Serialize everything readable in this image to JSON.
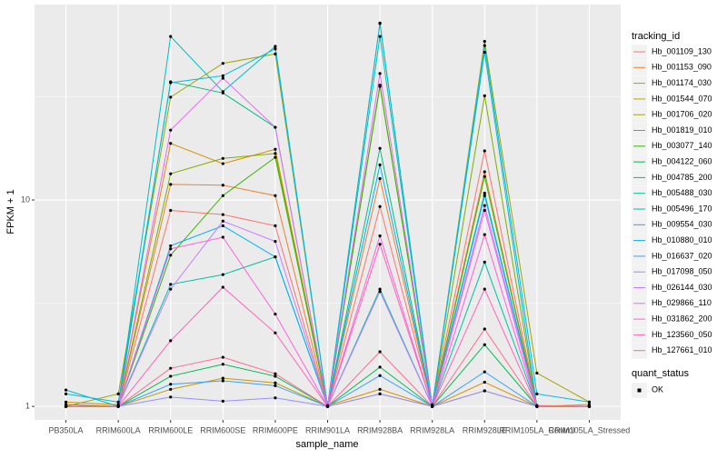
{
  "chart_data": {
    "type": "line",
    "log_y": true,
    "grid": true,
    "x_label": "sample_name",
    "y_label": "FPKM + 1",
    "legend_title": "tracking_id",
    "point_legend_title": "quant_status",
    "point_legend_label": "OK",
    "point_color": "#000000",
    "categories": [
      "PB350LA",
      "RRIM600LA",
      "RRIM600LE",
      "RRIM600SE",
      "RRIM600PE",
      "RRIM901LA",
      "RRIM928BA",
      "RRIM928LA",
      "RRIM928LE",
      "RRIM105LA_Control",
      "RRIM105LA_Stressed"
    ],
    "ylim": [
      0.86,
      88.5
    ],
    "yticks": [
      1,
      10
    ],
    "series": [
      {
        "name": "Hb_001109_130",
        "color": "#F8766D",
        "values": [
          1.02,
          1.0,
          8.9,
          8.5,
          7.5,
          1.0,
          9.3,
          1.02,
          17.3,
          1.01,
          1.0
        ]
      },
      {
        "name": "Hb_001153_090",
        "color": "#EA8331",
        "values": [
          1.0,
          1.0,
          11.9,
          11.8,
          10.5,
          1.0,
          12.7,
          1.0,
          13.7,
          1.0,
          1.0
        ]
      },
      {
        "name": "Hb_001174_030",
        "color": "#D89000",
        "values": [
          1.05,
          1.02,
          18.8,
          15.0,
          17.6,
          1.01,
          1.21,
          1.0,
          1.31,
          1.0,
          1.02
        ]
      },
      {
        "name": "Hb_001544_070",
        "color": "#C09B00",
        "values": [
          1.0,
          1.0,
          1.21,
          1.37,
          1.3,
          1.0,
          1.15,
          1.0,
          1.19,
          1.0,
          1.0
        ]
      },
      {
        "name": "Hb_001706_020",
        "color": "#A3A500",
        "values": [
          1.0,
          1.15,
          31.5,
          45.9,
          51,
          1.0,
          71.6,
          1.0,
          58.7,
          1.45,
          1.05
        ]
      },
      {
        "name": "Hb_001819_010",
        "color": "#7CAE00",
        "values": [
          1.02,
          1.0,
          13.4,
          15.9,
          16.8,
          1.0,
          36,
          1.0,
          32,
          1.0,
          1.0
        ]
      },
      {
        "name": "Hb_003077_140",
        "color": "#39B600",
        "values": [
          1.0,
          1.0,
          5.4,
          10.5,
          16.1,
          1.0,
          35.5,
          1.0,
          13.0,
          1.0,
          1.0
        ]
      },
      {
        "name": "Hb_004122_060",
        "color": "#00BB4E",
        "values": [
          1.0,
          1.0,
          1.4,
          1.6,
          1.4,
          1.0,
          1.55,
          1.0,
          1.99,
          1.0,
          1.0
        ]
      },
      {
        "name": "Hb_004785_200",
        "color": "#00BF7D",
        "values": [
          1.0,
          1.0,
          37.4,
          33,
          22.5,
          1.0,
          17.8,
          1.0,
          10.8,
          1.0,
          1.0
        ]
      },
      {
        "name": "Hb_005488_030",
        "color": "#00C1A3",
        "values": [
          1.0,
          1.0,
          3.9,
          4.35,
          5.3,
          1.0,
          3.7,
          1.0,
          5.0,
          1.0,
          1.0
        ]
      },
      {
        "name": "Hb_005496_170",
        "color": "#00BFC4",
        "values": [
          1.2,
          1.0,
          62,
          33.5,
          55.5,
          1.0,
          62,
          1.0,
          52,
          1.0,
          1.0
        ]
      },
      {
        "name": "Hb_009554_030",
        "color": "#00BAE0",
        "values": [
          1.15,
          1.05,
          37,
          40,
          54,
          1.0,
          72,
          1.0,
          56,
          1.15,
          1.05
        ]
      },
      {
        "name": "Hb_010880_010",
        "color": "#00B0F6",
        "values": [
          1.0,
          1.0,
          6.0,
          7.5,
          5.3,
          1.0,
          14.8,
          1.0,
          10.5,
          1.0,
          1.0
        ]
      },
      {
        "name": "Hb_016637_020",
        "color": "#35A2FF",
        "values": [
          1.0,
          1.0,
          1.28,
          1.33,
          1.26,
          1.0,
          1.41,
          1.0,
          1.47,
          1.0,
          1.0
        ]
      },
      {
        "name": "Hb_017098_050",
        "color": "#9590FF",
        "values": [
          1.0,
          1.0,
          1.11,
          1.06,
          1.1,
          1.0,
          1.15,
          1.0,
          1.19,
          1.0,
          1.0
        ]
      },
      {
        "name": "Hb_026144_030",
        "color": "#C77CFF",
        "values": [
          1.0,
          1.0,
          3.7,
          7.9,
          6.3,
          1.0,
          3.6,
          1.0,
          9.4,
          1.0,
          1.0
        ]
      },
      {
        "name": "Hb_029866_110",
        "color": "#E76BF3",
        "values": [
          1.0,
          1.0,
          21.8,
          38.9,
          22.5,
          1.0,
          41,
          1.0,
          8.9,
          1.0,
          1.0
        ]
      },
      {
        "name": "Hb_031862_200",
        "color": "#FA62DB",
        "values": [
          1.0,
          1.0,
          5.8,
          6.6,
          2.8,
          1.0,
          6.7,
          1.0,
          6.8,
          1.0,
          1.0
        ]
      },
      {
        "name": "Hb_123560_050",
        "color": "#FF62BC",
        "values": [
          1.0,
          1.0,
          2.08,
          3.78,
          2.27,
          1.0,
          6.1,
          1.0,
          3.7,
          1.0,
          1.0
        ]
      },
      {
        "name": "Hb_127661_010",
        "color": "#FF6C91",
        "values": [
          1.0,
          1.0,
          1.53,
          1.73,
          1.44,
          1.0,
          1.84,
          1.0,
          2.37,
          1.0,
          1.0
        ]
      }
    ]
  }
}
